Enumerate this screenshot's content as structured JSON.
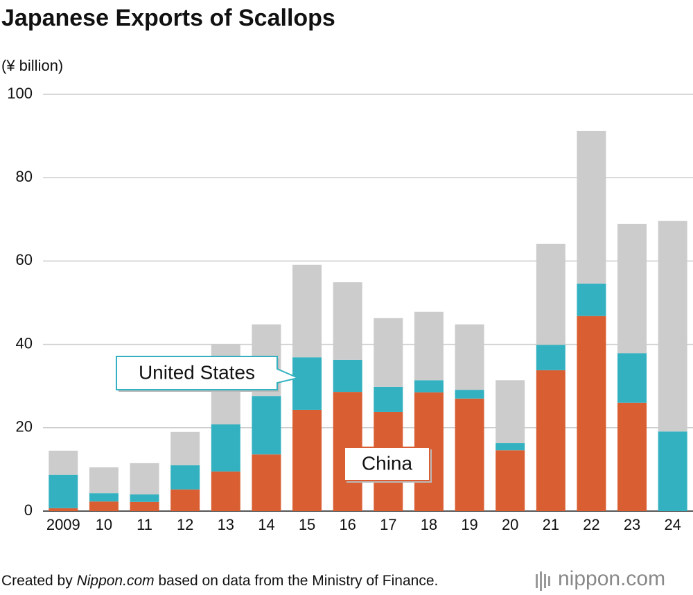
{
  "chart_data": {
    "type": "stacked-bar",
    "title": "Japanese Exports of Scallops",
    "y_label": "(¥ billion)",
    "categories": [
      "2009",
      "10",
      "11",
      "12",
      "13",
      "14",
      "15",
      "16",
      "17",
      "18",
      "19",
      "20",
      "21",
      "22",
      "23",
      "24"
    ],
    "series": [
      {
        "name": "China",
        "color": "#d95f33",
        "values": [
          0.7,
          2.3,
          2.2,
          5.2,
          9.5,
          13.6,
          24.3,
          28.6,
          23.8,
          28.5,
          27.0,
          14.6,
          33.8,
          46.8,
          26.0,
          0
        ]
      },
      {
        "name": "United States",
        "color": "#33b1c0",
        "values": [
          8.0,
          2.0,
          1.8,
          5.8,
          11.3,
          14.0,
          12.6,
          7.7,
          6.0,
          2.9,
          2.1,
          1.7,
          6.1,
          7.8,
          11.9,
          19.1
        ]
      },
      {
        "color": "#cccccc",
        "values": [
          5.8,
          6.2,
          7.5,
          8.0,
          19.3,
          17.2,
          22.2,
          18.6,
          16.5,
          16.4,
          15.7,
          15.1,
          24.2,
          36.6,
          31.0,
          50.5
        ]
      }
    ],
    "ylim": [
      0,
      100
    ],
    "yticks": [
      0,
      20,
      40,
      60,
      80,
      100
    ],
    "grid": true,
    "source": {
      "before": "Created by ",
      "emphasis": "Nippon.com",
      "after": " based on data from the Ministry of Finance."
    },
    "logo": "nippon.com"
  }
}
